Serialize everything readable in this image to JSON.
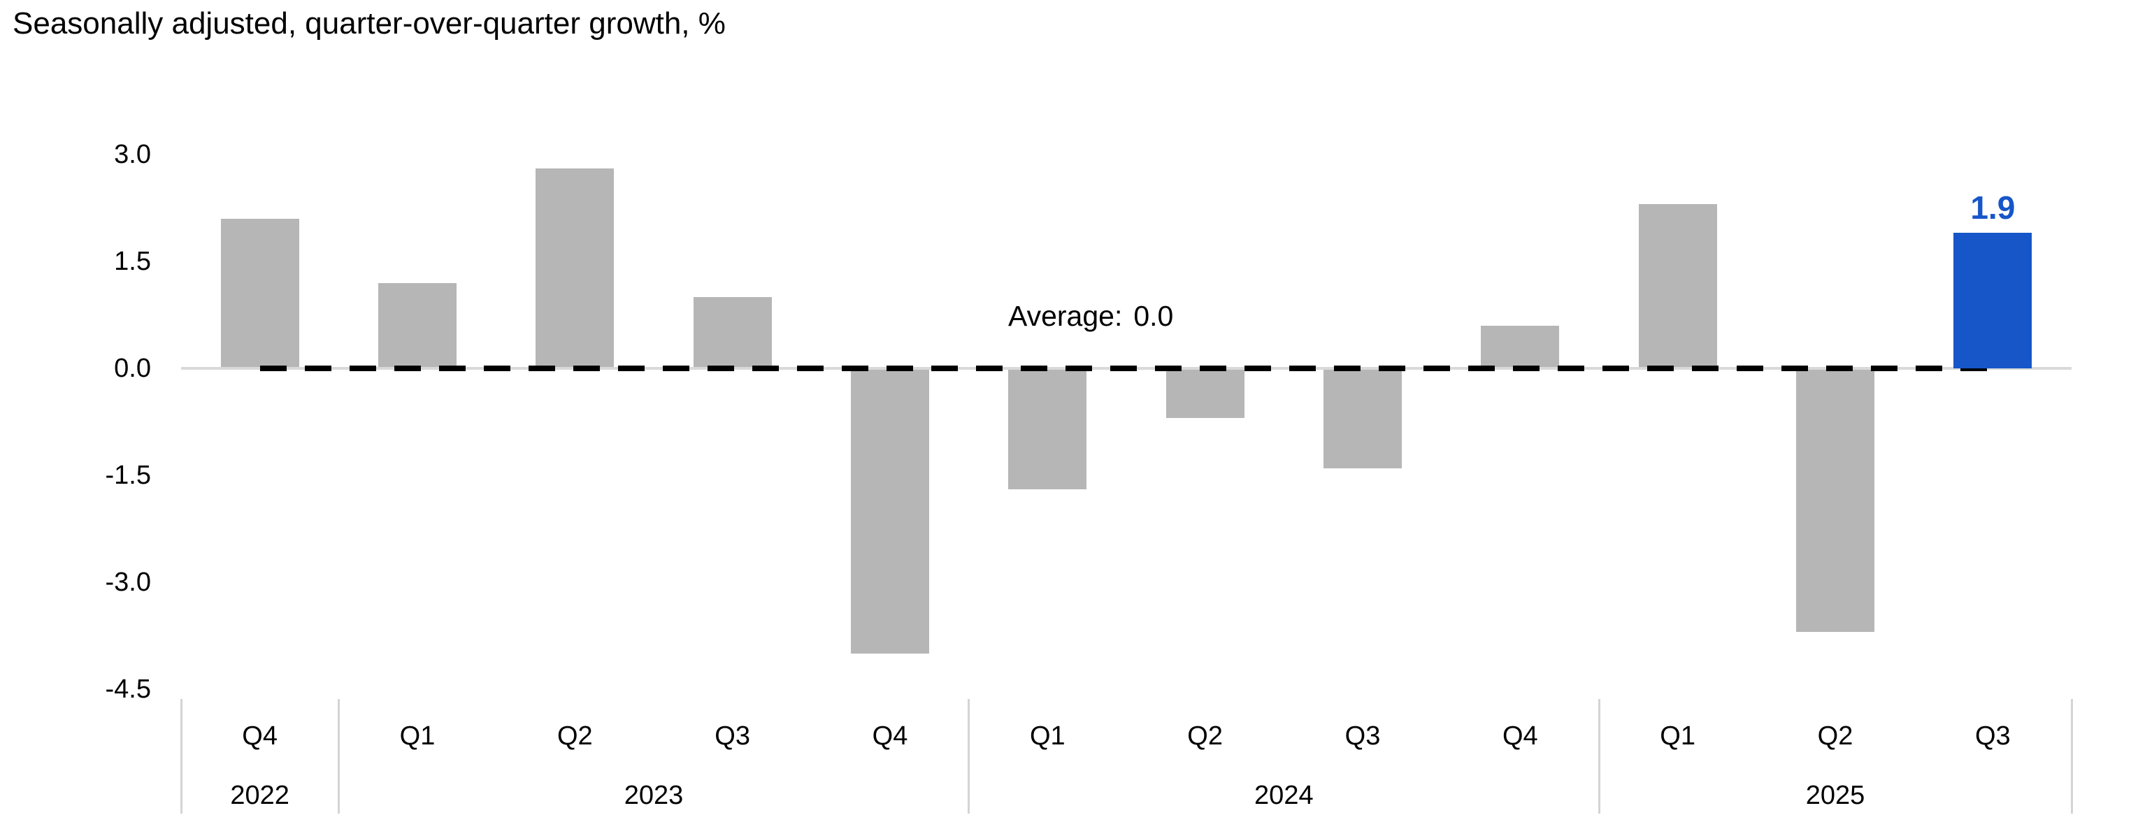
{
  "title": "Seasonally adjusted, quarter-over-quarter growth, %",
  "average": {
    "label": "Average:",
    "value": "0.0"
  },
  "colors": {
    "bar_gray": "#b5b6b5",
    "bar_highlight_blue": "#1656c8",
    "zero_axis_line": "#d9d9d9",
    "separator_line": "#d4d4d4",
    "dashed_average_line": "#000000",
    "text": "#000000"
  },
  "chart_data": {
    "type": "bar",
    "title": "Seasonally adjusted, quarter-over-quarter growth, %",
    "categories": [
      "Q4",
      "Q1",
      "Q2",
      "Q3",
      "Q4",
      "Q1",
      "Q2",
      "Q3",
      "Q4",
      "Q1",
      "Q2",
      "Q3"
    ],
    "year_groups": [
      {
        "year": "2022",
        "count": 1
      },
      {
        "year": "2023",
        "count": 4
      },
      {
        "year": "2024",
        "count": 4
      },
      {
        "year": "2025",
        "count": 3
      }
    ],
    "values": [
      2.1,
      1.2,
      2.8,
      1.0,
      -4.0,
      -1.7,
      -0.7,
      -1.4,
      0.6,
      2.3,
      -3.7,
      1.9
    ],
    "highlight_index": 11,
    "highlight_label": "1.9",
    "ytick_labels": [
      "3.0",
      "1.5",
      "0.0",
      "-1.5",
      "-3.0",
      "-4.5"
    ],
    "ytick_values": [
      3.0,
      1.5,
      0.0,
      -1.5,
      -3.0,
      -4.5
    ],
    "ylim": [
      -4.5,
      3.2
    ],
    "average_value": 0.0,
    "grid": false,
    "legend": "none",
    "xlabel": "",
    "ylabel": ""
  }
}
